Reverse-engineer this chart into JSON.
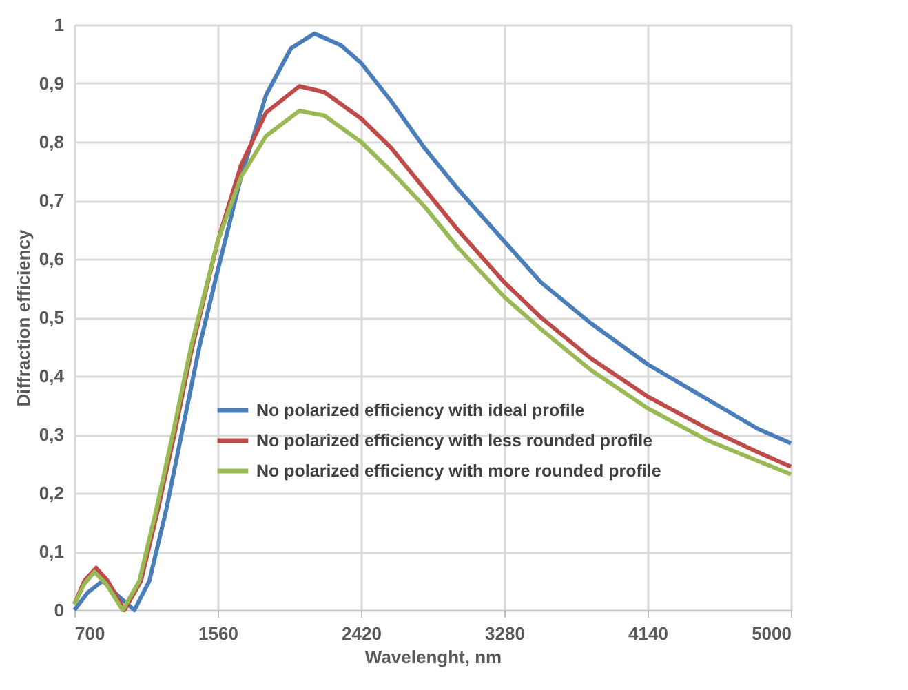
{
  "chart_data": {
    "type": "line",
    "xlabel": "Wavelenght, nm",
    "ylabel": "Diffraction efficiency",
    "xlim": [
      700,
      5000
    ],
    "xticks": [
      700,
      1560,
      2420,
      3280,
      4140,
      5000
    ],
    "ylim": [
      0,
      1
    ],
    "yticks": [
      0,
      {
        "value": 0.1,
        "label": "0,1"
      },
      {
        "value": 0.2,
        "label": "0,2"
      },
      {
        "value": 0.3,
        "label": "0,3"
      },
      {
        "value": 0.4,
        "label": "0,4"
      },
      {
        "value": 0.5,
        "label": "0,5"
      },
      {
        "value": 0.6,
        "label": "0,6"
      },
      {
        "value": 0.7,
        "label": "0,7"
      },
      {
        "value": 0.8,
        "label": "0,8"
      },
      {
        "value": 0.9,
        "label": "0,9"
      },
      1
    ],
    "grid": true,
    "legend": "bottom right",
    "marker": "none",
    "line_style": "solid",
    "series": [
      {
        "name": "No polarized efficiency with ideal profile",
        "color": "#4a7ebb",
        "x": [
          700,
          780,
          870,
          960,
          1060,
          1150,
          1250,
          1350,
          1450,
          1560,
          1700,
          1850,
          2000,
          2140,
          2300,
          2420,
          2600,
          2800,
          3000,
          3280,
          3500,
          3800,
          4140,
          4500,
          4800,
          5000
        ],
        "values": [
          0.0,
          0.03,
          0.05,
          0.025,
          0.0,
          0.05,
          0.17,
          0.31,
          0.45,
          0.58,
          0.74,
          0.88,
          0.96,
          0.985,
          0.965,
          0.935,
          0.87,
          0.79,
          0.72,
          0.63,
          0.56,
          0.49,
          0.42,
          0.36,
          0.31,
          0.285
        ]
      },
      {
        "name": "No polarized efficiency with less rounded profile",
        "color": "#be4b48",
        "x": [
          700,
          760,
          830,
          900,
          1000,
          1100,
          1200,
          1300,
          1400,
          1560,
          1700,
          1850,
          2050,
          2200,
          2420,
          2600,
          2800,
          3000,
          3280,
          3500,
          3800,
          4140,
          4500,
          4800,
          5000
        ],
        "values": [
          0.01,
          0.05,
          0.072,
          0.05,
          0.0,
          0.05,
          0.17,
          0.3,
          0.44,
          0.63,
          0.76,
          0.85,
          0.895,
          0.885,
          0.84,
          0.79,
          0.72,
          0.65,
          0.56,
          0.5,
          0.43,
          0.365,
          0.31,
          0.27,
          0.245
        ]
      },
      {
        "name": "No polarized efficiency with more rounded profile",
        "color": "#98b954",
        "x": [
          700,
          760,
          820,
          890,
          990,
          1090,
          1190,
          1290,
          1400,
          1560,
          1700,
          1850,
          2050,
          2200,
          2420,
          2600,
          2800,
          3000,
          3280,
          3500,
          3800,
          4140,
          4500,
          4800,
          5000
        ],
        "values": [
          0.01,
          0.045,
          0.065,
          0.045,
          0.0,
          0.05,
          0.17,
          0.3,
          0.45,
          0.63,
          0.74,
          0.81,
          0.853,
          0.845,
          0.8,
          0.75,
          0.69,
          0.62,
          0.535,
          0.48,
          0.41,
          0.345,
          0.29,
          0.255,
          0.232
        ]
      }
    ]
  }
}
